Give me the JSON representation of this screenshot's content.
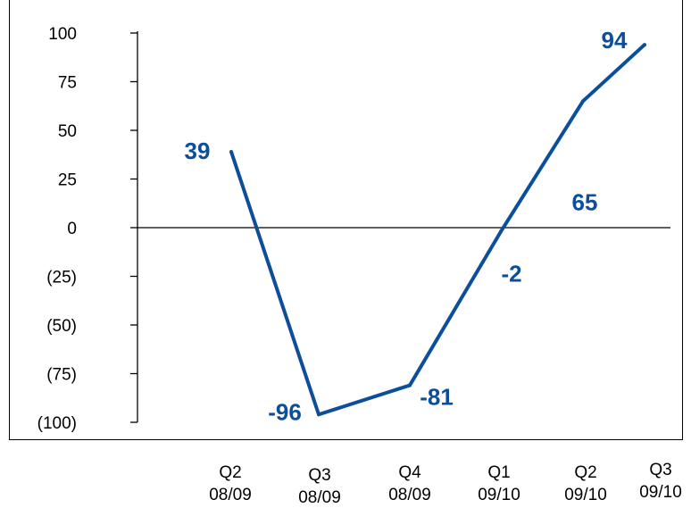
{
  "chart_data": {
    "type": "line",
    "title": "(partially visible, cropped at top)",
    "categories": [
      [
        "Q2",
        "08/09"
      ],
      [
        "Q3",
        "08/09"
      ],
      [
        "Q4",
        "08/09"
      ],
      [
        "Q1",
        "09/10"
      ],
      [
        "Q2",
        "09/10"
      ],
      [
        "Q3",
        "09/10"
      ]
    ],
    "series": [
      {
        "values": [
          39,
          -96,
          -81,
          -2,
          65,
          94
        ],
        "color": "#0B4F9C"
      }
    ],
    "data_labels": [
      "39",
      "-96",
      "-81",
      "-2",
      "65",
      "94"
    ],
    "yticks": [
      {
        "value": 100,
        "label": "100"
      },
      {
        "value": 75,
        "label": "75"
      },
      {
        "value": 50,
        "label": "50"
      },
      {
        "value": 25,
        "label": "25"
      },
      {
        "value": 0,
        "label": "0"
      },
      {
        "value": -25,
        "label": "(25)"
      },
      {
        "value": -50,
        "label": "(50)"
      },
      {
        "value": -75,
        "label": "(75)"
      },
      {
        "value": -100,
        "label": "(100)"
      }
    ],
    "ylim": [
      -100,
      100
    ],
    "grid": false,
    "zero_line": true,
    "xlabel": "",
    "ylabel": ""
  }
}
